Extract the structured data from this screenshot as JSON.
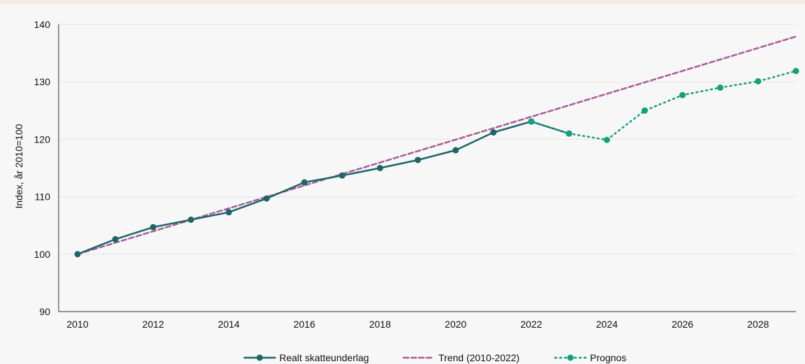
{
  "chart_data": {
    "type": "line",
    "title": "",
    "xlabel": "",
    "ylabel": "Index, år 2010=100",
    "xlim": [
      2009.5,
      2029
    ],
    "ylim": [
      90,
      140
    ],
    "x_ticks": [
      2010,
      2012,
      2014,
      2016,
      2018,
      2020,
      2022,
      2024,
      2026,
      2028
    ],
    "y_ticks": [
      90,
      100,
      110,
      120,
      130,
      140
    ],
    "grid": "horizontal",
    "legend_position": "bottom-center",
    "series": [
      {
        "name": "Realt skatteunderlag",
        "color": "#1f6468",
        "style": "solid-markers",
        "x": [
          2010,
          2011,
          2012,
          2013,
          2014,
          2015,
          2016,
          2017,
          2018,
          2019,
          2020,
          2021,
          2022,
          2023
        ],
        "values": [
          100.0,
          102.6,
          104.7,
          106.0,
          107.3,
          109.7,
          112.5,
          113.7,
          115.0,
          116.4,
          118.1,
          121.2,
          123.1,
          121.0
        ]
      },
      {
        "name": "Trend (2010-2022)",
        "color": "#a65d97",
        "style": "dashed",
        "x": [
          2010,
          2029
        ],
        "values": [
          100.0,
          137.9
        ]
      },
      {
        "name": "Prognos",
        "color": "#12a07d",
        "style": "dotted-markers",
        "x": [
          2022,
          2023,
          2024,
          2025,
          2026,
          2027,
          2028,
          2029
        ],
        "values": [
          123.1,
          121.0,
          119.9,
          125.0,
          127.7,
          129.0,
          130.1,
          131.9
        ]
      }
    ]
  }
}
